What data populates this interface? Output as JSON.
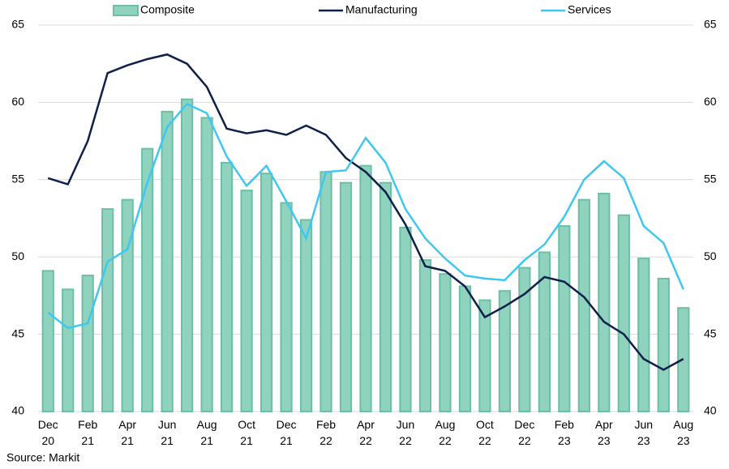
{
  "chart_data": {
    "type": "bar_line",
    "categories": [
      "Dec 20",
      null,
      "Feb 21",
      null,
      "Apr 21",
      null,
      "Jun 21",
      null,
      "Aug 21",
      null,
      "Oct 21",
      null,
      "Dec 21",
      null,
      "Feb 22",
      null,
      "Apr 22",
      null,
      "Jun 22",
      null,
      "Aug 22",
      null,
      "Oct 22",
      null,
      "Dec 22",
      null,
      "Feb 23",
      null,
      "Apr 23",
      null,
      "Jun 23",
      null,
      "Aug 23"
    ],
    "series": [
      {
        "name": "Composite",
        "type": "bar",
        "color": "#8fd3bf",
        "values": [
          49.1,
          47.9,
          48.8,
          53.1,
          53.7,
          57.0,
          59.4,
          60.2,
          59.0,
          56.1,
          54.3,
          55.4,
          53.5,
          52.4,
          55.5,
          54.8,
          55.9,
          54.8,
          51.9,
          49.8,
          48.9,
          48.1,
          47.2,
          47.8,
          49.3,
          50.3,
          52.0,
          53.7,
          54.1,
          52.7,
          49.9,
          48.6,
          46.7
        ]
      },
      {
        "name": "Manufacturing",
        "type": "line",
        "color": "#0e1f4a",
        "values": [
          55.1,
          54.7,
          57.5,
          61.9,
          62.4,
          62.8,
          63.1,
          62.5,
          61.0,
          58.3,
          58.0,
          58.2,
          57.9,
          58.5,
          57.9,
          56.4,
          55.5,
          54.2,
          52.1,
          49.4,
          49.1,
          48.1,
          46.1,
          46.8,
          47.6,
          48.7,
          48.4,
          47.4,
          45.8,
          45.0,
          43.4,
          42.7,
          43.4
        ]
      },
      {
        "name": "Services",
        "type": "line",
        "color": "#3ec7f0",
        "values": [
          46.4,
          45.4,
          45.7,
          49.7,
          50.5,
          54.8,
          58.4,
          59.9,
          59.3,
          56.5,
          54.6,
          55.9,
          53.6,
          51.2,
          55.5,
          55.6,
          57.7,
          56.1,
          53.1,
          51.2,
          49.9,
          48.8,
          48.6,
          48.5,
          49.8,
          50.8,
          52.6,
          55.0,
          56.2,
          55.1,
          52.0,
          50.9,
          47.9
        ]
      }
    ],
    "ylim": [
      40,
      65
    ],
    "yticks": [
      40,
      45,
      50,
      55,
      60,
      65
    ],
    "y2lim": [
      40,
      65
    ],
    "y2ticks": [
      40,
      45,
      50,
      55,
      60,
      65
    ],
    "grid": true,
    "legend": "top",
    "source": "Source: Markit"
  }
}
